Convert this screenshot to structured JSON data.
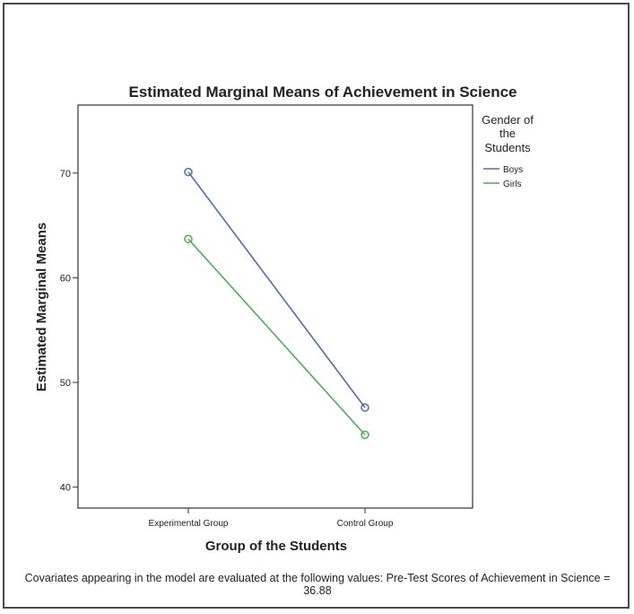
{
  "chart_data": {
    "type": "line",
    "title": "Estimated Marginal Means of Achievement in Science",
    "xlabel": "Group of the Students",
    "ylabel": "Estimated Marginal Means",
    "categories": [
      "Experimental Group",
      "Control Group"
    ],
    "yticks": [
      40,
      50,
      60,
      70
    ],
    "ylim": [
      38,
      76.5
    ],
    "grid": false,
    "legend": {
      "title_lines": [
        "Gender of",
        "the",
        "Students"
      ],
      "placement": "right"
    },
    "series": [
      {
        "name": "Boys",
        "color": "#4a6fb5",
        "values": [
          70.1,
          47.6
        ]
      },
      {
        "name": "Girls",
        "color": "#4caf50",
        "values": [
          63.7,
          45.0
        ]
      }
    ],
    "marker": "circle",
    "footnote": "Covariates appearing in the model are evaluated at the following values: Pre-Test Scores of Achievement in Science = 36.88"
  }
}
